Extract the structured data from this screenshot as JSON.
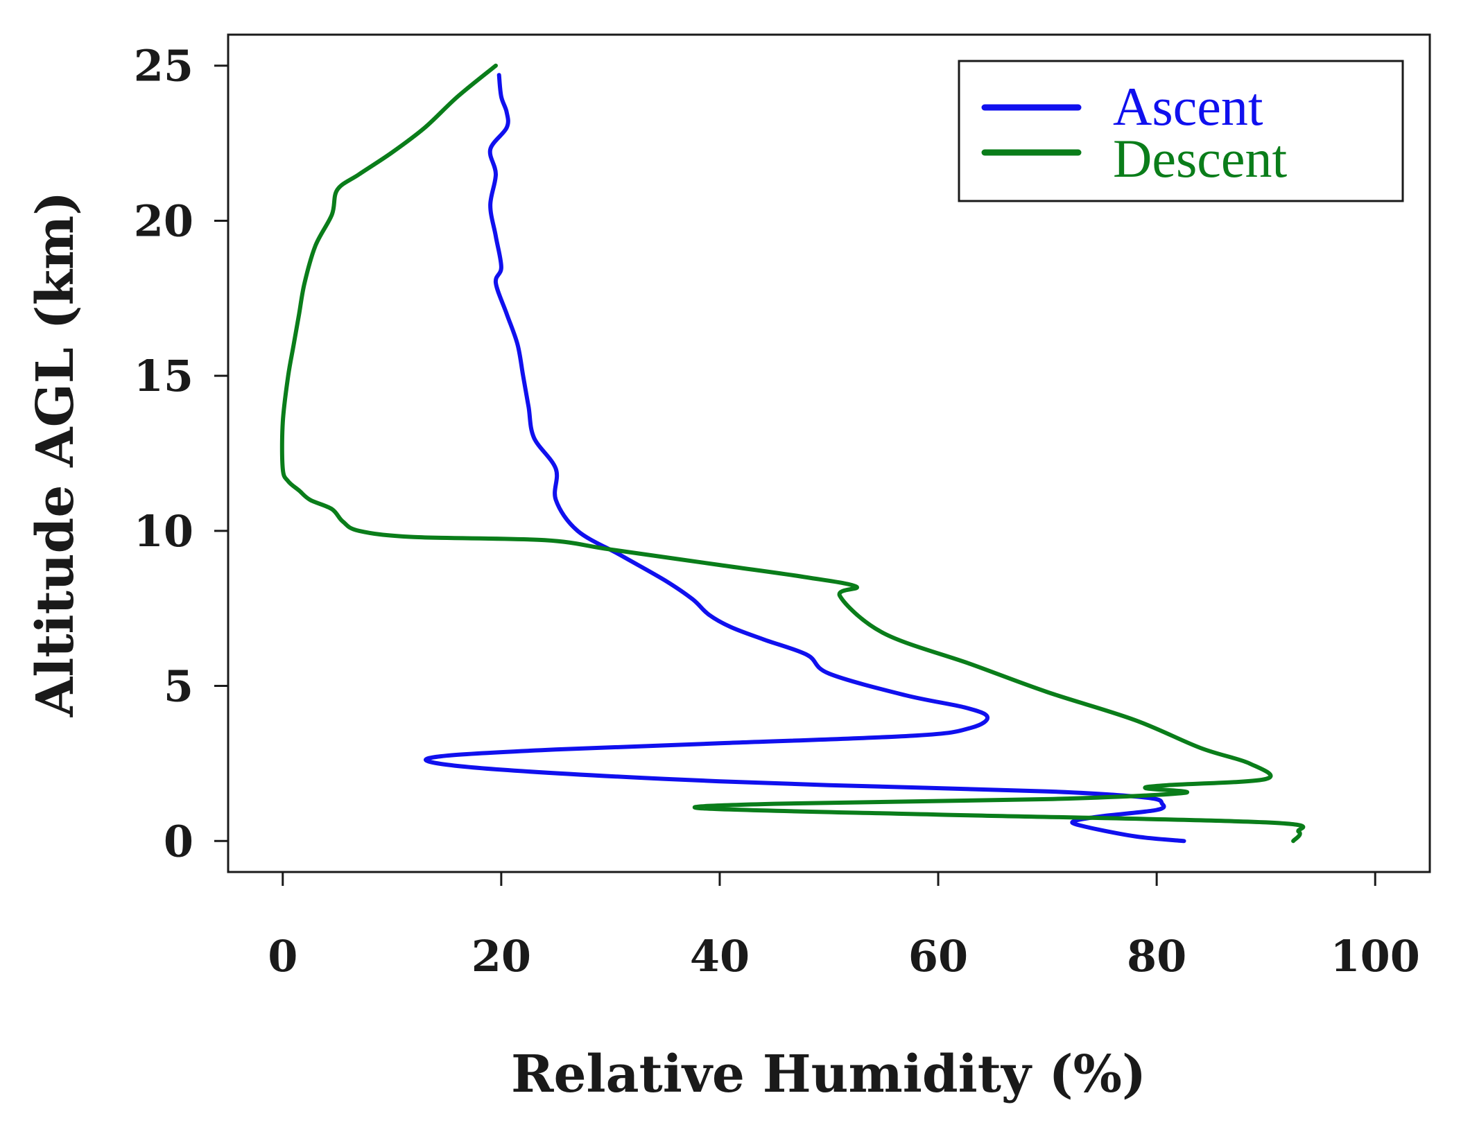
{
  "chart_data": {
    "type": "line",
    "title": "",
    "xlabel": "Relative Humidity (%)",
    "ylabel": "Altitude AGL (km)",
    "xlim": [
      -5,
      105
    ],
    "ylim": [
      -1,
      26
    ],
    "x_ticks": [
      0,
      20,
      40,
      60,
      80,
      100
    ],
    "y_ticks": [
      0,
      5,
      10,
      15,
      20,
      25
    ],
    "x_tick_labels": [
      "0",
      "20",
      "40",
      "60",
      "80",
      "100"
    ],
    "y_tick_labels": [
      "0",
      "5",
      "10",
      "15",
      "20",
      "25"
    ],
    "grid": false,
    "legend_position": "top-right",
    "series": [
      {
        "name": "Ascent",
        "color": "#1010ee",
        "points": [
          [
            82.5,
            0
          ],
          [
            78,
            0.15
          ],
          [
            73,
            0.5
          ],
          [
            72.5,
            0.65
          ],
          [
            75,
            0.8
          ],
          [
            80,
            1.0
          ],
          [
            80.5,
            1.2
          ],
          [
            79,
            1.4
          ],
          [
            70,
            1.6
          ],
          [
            50,
            1.8
          ],
          [
            35,
            2.0
          ],
          [
            20,
            2.3
          ],
          [
            13.5,
            2.55
          ],
          [
            15,
            2.75
          ],
          [
            25,
            2.95
          ],
          [
            40,
            3.15
          ],
          [
            58,
            3.4
          ],
          [
            63,
            3.65
          ],
          [
            64.5,
            4.0
          ],
          [
            62.5,
            4.3
          ],
          [
            57,
            4.7
          ],
          [
            50,
            5.4
          ],
          [
            48,
            6.0
          ],
          [
            44,
            6.5
          ],
          [
            41,
            6.9
          ],
          [
            39,
            7.3
          ],
          [
            37.5,
            7.8
          ],
          [
            35,
            8.4
          ],
          [
            31,
            9.2
          ],
          [
            27,
            10.0
          ],
          [
            25,
            11.0
          ],
          [
            25,
            12.0
          ],
          [
            23,
            13.0
          ],
          [
            22.5,
            14.0
          ],
          [
            22,
            15.0
          ],
          [
            21.5,
            16.0
          ],
          [
            20.5,
            17.0
          ],
          [
            19.5,
            18.0
          ],
          [
            20,
            18.5
          ],
          [
            19.5,
            19.5
          ],
          [
            19,
            20.5
          ],
          [
            19.5,
            21.5
          ],
          [
            19,
            22.3
          ],
          [
            20.5,
            23.0
          ],
          [
            20.5,
            23.5
          ],
          [
            20,
            24.0
          ],
          [
            19.8,
            24.7
          ]
        ]
      },
      {
        "name": "Descent",
        "color": "#0a7d1a",
        "points": [
          [
            92.5,
            0
          ],
          [
            93,
            0.3
          ],
          [
            90,
            0.6
          ],
          [
            60,
            0.85
          ],
          [
            38.5,
            1.05
          ],
          [
            45,
            1.2
          ],
          [
            70,
            1.35
          ],
          [
            82.5,
            1.55
          ],
          [
            79,
            1.7
          ],
          [
            81,
            1.8
          ],
          [
            90,
            2.0
          ],
          [
            88.5,
            2.5
          ],
          [
            84,
            3.0
          ],
          [
            78,
            3.9
          ],
          [
            70,
            4.8
          ],
          [
            63,
            5.7
          ],
          [
            55,
            6.7
          ],
          [
            51,
            7.9
          ],
          [
            52.5,
            8.2
          ],
          [
            48,
            8.5
          ],
          [
            40,
            8.9
          ],
          [
            30,
            9.4
          ],
          [
            24,
            9.7
          ],
          [
            12,
            9.8
          ],
          [
            7,
            10.0
          ],
          [
            5.5,
            10.3
          ],
          [
            4.5,
            10.7
          ],
          [
            2.5,
            11.0
          ],
          [
            1.5,
            11.3
          ],
          [
            0.5,
            11.6
          ],
          [
            0,
            12.0
          ],
          [
            0,
            13.5
          ],
          [
            0.5,
            15.0
          ],
          [
            1,
            16.0
          ],
          [
            1.5,
            17.0
          ],
          [
            2,
            18.0
          ],
          [
            3,
            19.2
          ],
          [
            4.5,
            20.2
          ],
          [
            5,
            21.0
          ],
          [
            7,
            21.5
          ],
          [
            10,
            22.2
          ],
          [
            13,
            23.0
          ],
          [
            16,
            24.0
          ],
          [
            19.5,
            25.0
          ]
        ]
      }
    ]
  }
}
